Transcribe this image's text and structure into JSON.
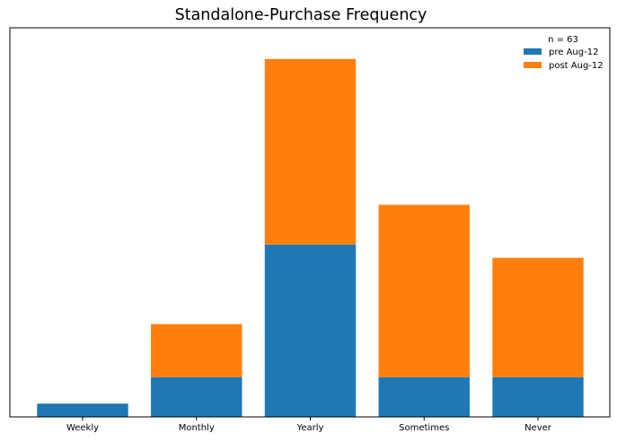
{
  "chart_data": {
    "type": "bar",
    "stacked": true,
    "title": "Standalone-Purchase Frequency",
    "xlabel": "",
    "ylabel": "",
    "categories": [
      "Weekly",
      "Monthly",
      "Yearly",
      "Sometimes",
      "Never"
    ],
    "series": [
      {
        "name": "pre Aug-12",
        "color": "#1f77b4",
        "values": [
          1,
          3,
          13,
          3,
          3
        ]
      },
      {
        "name": "post Aug-12",
        "color": "#ff7f0e",
        "values": [
          0,
          4,
          14,
          13,
          9
        ]
      }
    ],
    "ylim": [
      0,
      28
    ],
    "y_ticks_visible": false,
    "grid": false,
    "legend": {
      "title": "n = 63",
      "placement": "top-right",
      "frame": false
    }
  }
}
